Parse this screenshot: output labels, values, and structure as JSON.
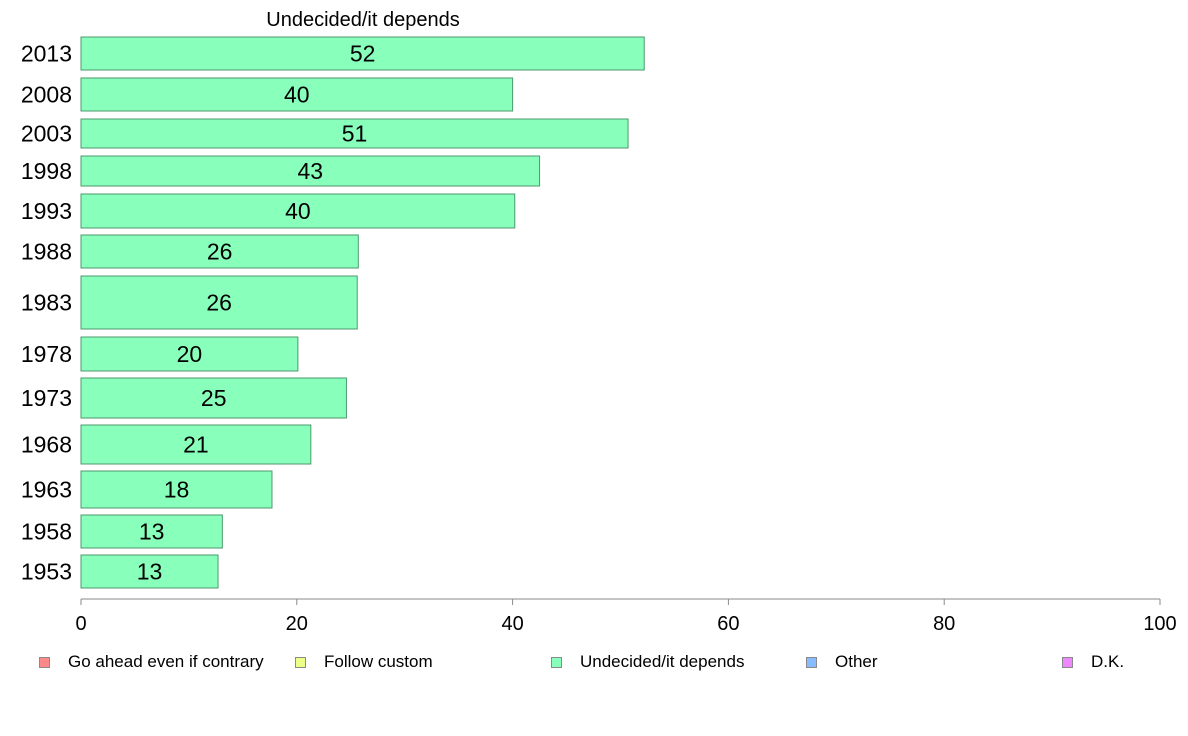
{
  "chart_data": {
    "type": "bar",
    "orientation": "horizontal",
    "title": "Undecided/it depends",
    "categories": [
      "2013",
      "2008",
      "2003",
      "1998",
      "1993",
      "1988",
      "1983",
      "1978",
      "1973",
      "1968",
      "1963",
      "1958",
      "1953"
    ],
    "values": [
      52,
      40,
      51,
      43,
      40,
      26,
      26,
      20,
      25,
      21,
      18,
      13,
      13
    ],
    "actual_values": [
      52.2,
      40.0,
      50.7,
      42.5,
      40.2,
      25.7,
      25.6,
      20.1,
      24.6,
      21.3,
      17.7,
      13.1,
      12.7
    ],
    "xlim": [
      0,
      100
    ],
    "xticks": [
      "0",
      "20",
      "40",
      "60",
      "80",
      "100"
    ],
    "grid": false,
    "bar_color": "#88ffbb",
    "bar_border_color": "#4c9a6e",
    "legend_placement": "bottom",
    "legend": [
      {
        "label": "Go ahead even if contrary",
        "color": "#ff8888"
      },
      {
        "label": "Follow custom",
        "color": "#eeff88"
      },
      {
        "label": "Undecided/it depends",
        "color": "#88ffbb"
      },
      {
        "label": "Other",
        "color": "#88bbff"
      },
      {
        "label": "D.K.",
        "color": "#ee88ff"
      }
    ]
  }
}
